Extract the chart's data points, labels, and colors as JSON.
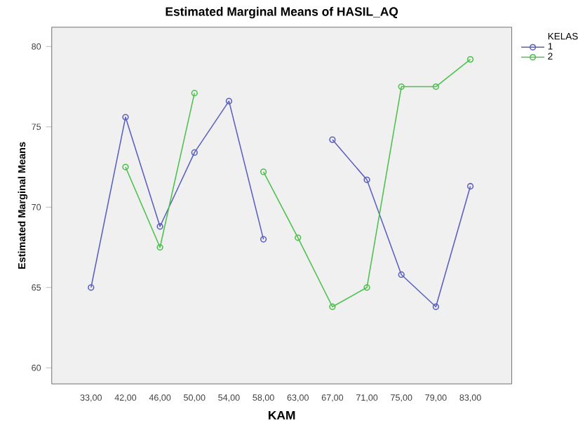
{
  "chart_data": {
    "type": "line",
    "title": "Estimated Marginal Means of HASIL_AQ",
    "xlabel": "KAM",
    "ylabel": "Estimated Marginal Means",
    "legend_title": "KELAS",
    "categories": [
      "33,00",
      "42,00",
      "46,00",
      "50,00",
      "54,00",
      "58,00",
      "63,00",
      "67,00",
      "71,00",
      "75,00",
      "79,00",
      "83,00"
    ],
    "series": [
      {
        "name": "1",
        "color": "#5a5fc0",
        "values": [
          65.0,
          75.6,
          68.8,
          73.4,
          76.6,
          68.0,
          null,
          74.2,
          71.7,
          65.8,
          63.8,
          71.3
        ]
      },
      {
        "name": "2",
        "color": "#4cc04c",
        "values": [
          null,
          72.5,
          67.5,
          77.1,
          null,
          72.2,
          68.1,
          63.8,
          65.0,
          77.5,
          77.5,
          79.2
        ]
      }
    ],
    "ylim": [
      59,
      81.2
    ],
    "yticks": [
      60,
      65,
      70,
      75,
      80
    ],
    "grid": false,
    "legend": "right",
    "marker": "circle",
    "line_style": "solid"
  }
}
